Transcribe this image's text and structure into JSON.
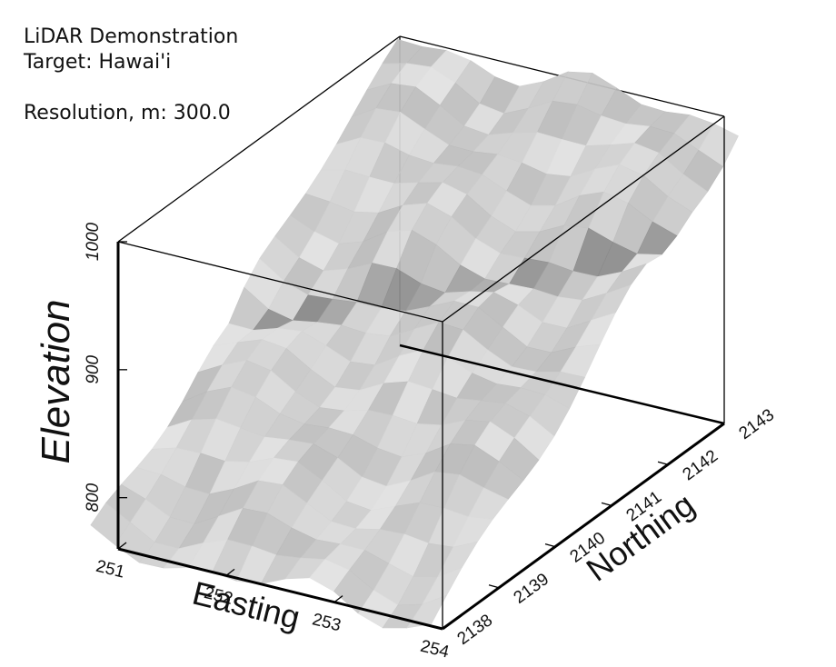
{
  "caption": {
    "line1": "LiDAR Demonstration",
    "line2": "Target: Hawai'i",
    "line3": "Resolution, m: 300.0"
  },
  "chart_data": {
    "type": "surface3d",
    "xlabel": "Easting",
    "ylabel": "Northing",
    "zlabel": "Elevation",
    "xticks": [
      "251",
      "252",
      "253",
      "254"
    ],
    "yticks": [
      "2138",
      "2139",
      "2140",
      "2141",
      "2142",
      "2143"
    ],
    "zticks": [
      "800",
      "900",
      "1000"
    ],
    "xlim": [
      251,
      254
    ],
    "ylim": [
      2138,
      2143
    ],
    "zlim": [
      760,
      1000
    ],
    "surface_color": "#c8c8c8",
    "trend": "elevation rises from ~780 at low Northing to ~990 at high Northing, with a darker linear channel crossing diagonally"
  }
}
